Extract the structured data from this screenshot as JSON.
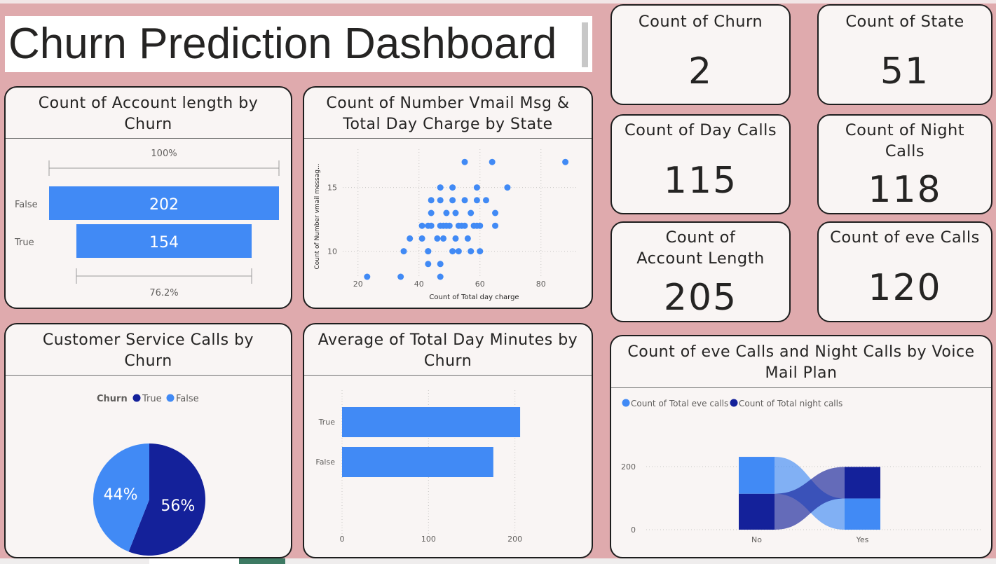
{
  "dashboard": {
    "title": "Churn Prediction Dashboard"
  },
  "colors": {
    "background": "#dfaaad",
    "panel": "#f9f5f4",
    "bar_blue": "#418af5",
    "dark_navy": "#14219a"
  },
  "cards": [
    {
      "label": "Count of Churn",
      "value": "2"
    },
    {
      "label": "Count of State",
      "value": "51"
    },
    {
      "label": "Count of Day Calls",
      "value": "115"
    },
    {
      "label": "Count of Night Calls",
      "value": "118"
    },
    {
      "label": "Count of Account Length",
      "value": "205"
    },
    {
      "label": "Count of eve Calls",
      "value": "120"
    }
  ],
  "chart_data": [
    {
      "type": "bar",
      "subtype": "funnel",
      "title": "Count of Account length by Churn",
      "categories": [
        "False",
        "True"
      ],
      "values": [
        202,
        154
      ],
      "top_percent_label": "100%",
      "bottom_percent_label": "76.2%"
    },
    {
      "type": "scatter",
      "title": "Count of Number Vmail Msg & Total Day Charge by State",
      "xlabel": "Count of Total day charge",
      "ylabel": "Count of Number vmail messag...",
      "xlim": [
        15,
        92
      ],
      "ylim": [
        8,
        18
      ],
      "xticks": [
        20,
        40,
        60,
        80
      ],
      "yticks": [
        10,
        15
      ],
      "points": [
        [
          23,
          8
        ],
        [
          34,
          8
        ],
        [
          47,
          8
        ],
        [
          43,
          9
        ],
        [
          47,
          9
        ],
        [
          35,
          10
        ],
        [
          43,
          10
        ],
        [
          43,
          10
        ],
        [
          51,
          10
        ],
        [
          53,
          10
        ],
        [
          57,
          10
        ],
        [
          60,
          10
        ],
        [
          37,
          11
        ],
        [
          41,
          11
        ],
        [
          46,
          11
        ],
        [
          48,
          11
        ],
        [
          52,
          11
        ],
        [
          56,
          11
        ],
        [
          43,
          12
        ],
        [
          44,
          12
        ],
        [
          47,
          12
        ],
        [
          48,
          12
        ],
        [
          50,
          12
        ],
        [
          53,
          12
        ],
        [
          54,
          12
        ],
        [
          58,
          12
        ],
        [
          60,
          12
        ],
        [
          65,
          12
        ],
        [
          41,
          12
        ],
        [
          49,
          12
        ],
        [
          59,
          12
        ],
        [
          55,
          12
        ],
        [
          44,
          13
        ],
        [
          49,
          13
        ],
        [
          52,
          13
        ],
        [
          57,
          13
        ],
        [
          65,
          13
        ],
        [
          44,
          14
        ],
        [
          47,
          14
        ],
        [
          51,
          14
        ],
        [
          55,
          14
        ],
        [
          59,
          14
        ],
        [
          62,
          14
        ],
        [
          47,
          15
        ],
        [
          51,
          15
        ],
        [
          59,
          15
        ],
        [
          69,
          15
        ],
        [
          55,
          17
        ],
        [
          64,
          17
        ],
        [
          88,
          17
        ]
      ]
    },
    {
      "type": "pie",
      "title": "Customer Service Calls by Churn",
      "legend_title": "Churn",
      "legend_position": "top",
      "series": [
        {
          "name": "True",
          "value": 56,
          "label": "56%",
          "color": "#14219a"
        },
        {
          "name": "False",
          "value": 44,
          "label": "44%",
          "color": "#418af5"
        }
      ]
    },
    {
      "type": "bar",
      "orientation": "horizontal",
      "title": "Average of Total Day Minutes by Churn",
      "categories": [
        "True",
        "False"
      ],
      "values": [
        206,
        175
      ],
      "xlim": [
        0,
        240
      ],
      "xticks": [
        0,
        100,
        200
      ],
      "grid": true
    },
    {
      "type": "bar",
      "subtype": "ribbon",
      "title": "Count of eve Calls and Night Calls by Voice Mail Plan",
      "legend_position": "top-left",
      "categories": [
        "No",
        "Yes"
      ],
      "series": [
        {
          "name": "Count of Total eve calls",
          "color": "#418af5",
          "values": [
            117,
            99
          ]
        },
        {
          "name": "Count of Total night calls",
          "color": "#14219a",
          "values": [
            114,
            100
          ]
        }
      ],
      "ylim": [
        0,
        240
      ],
      "yticks": [
        0,
        200
      ],
      "grid": true
    }
  ]
}
